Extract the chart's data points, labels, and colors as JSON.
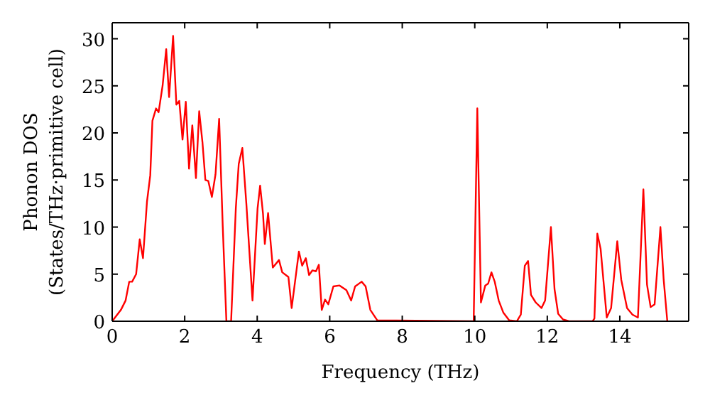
{
  "chart_data": {
    "type": "line",
    "xlabel": "Frequency (THz)",
    "ylabel": "Phonon DOS\n(States/THz·primitive cell)",
    "xlim": [
      0,
      15.9
    ],
    "ylim": [
      0,
      31.7
    ],
    "xticks": [
      0,
      2,
      4,
      6,
      8,
      10,
      12,
      14
    ],
    "yticks": [
      0,
      5,
      10,
      15,
      20,
      25,
      30
    ],
    "grid": false,
    "legend": false,
    "marker": "none",
    "line_style": "solid",
    "series": [
      {
        "color": "#ff0000",
        "x": [
          0,
          0.24,
          0.37,
          0.47,
          0.55,
          0.66,
          0.76,
          0.85,
          0.96,
          1.05,
          1.11,
          1.21,
          1.28,
          1.39,
          1.49,
          1.57,
          1.68,
          1.77,
          1.85,
          1.94,
          2.03,
          2.12,
          2.21,
          2.31,
          2.4,
          2.49,
          2.57,
          2.65,
          2.75,
          2.85,
          2.95,
          3.05,
          3.15,
          3.28,
          3.41,
          3.49,
          3.59,
          3.7,
          3.87,
          4.01,
          4.08,
          4.16,
          4.21,
          4.3,
          4.43,
          4.6,
          4.69,
          4.86,
          4.95,
          5.15,
          5.24,
          5.34,
          5.43,
          5.52,
          5.62,
          5.7,
          5.78,
          5.87,
          5.96,
          6.1,
          6.27,
          6.46,
          6.59,
          6.7,
          6.88,
          6.99,
          7.12,
          7.31,
          9.97,
          10.07,
          10.17,
          10.29,
          10.37,
          10.46,
          10.55,
          10.66,
          10.79,
          10.95,
          11.16,
          11.27,
          11.38,
          11.47,
          11.55,
          11.68,
          11.84,
          11.94,
          12.1,
          12.2,
          12.3,
          12.43,
          12.6,
          13.25,
          13.3,
          13.38,
          13.47,
          13.64,
          13.76,
          13.93,
          14.04,
          14.2,
          14.35,
          14.5,
          14.65,
          14.75,
          14.85,
          14.96,
          15.12,
          15.21,
          15.31
        ],
        "values": [
          0,
          1.2,
          2.2,
          4.2,
          4.2,
          5.0,
          8.7,
          6.7,
          12.7,
          15.5,
          21.3,
          22.6,
          22.2,
          25.0,
          28.9,
          23.8,
          30.3,
          23.0,
          23.4,
          19.3,
          23.3,
          16.2,
          20.8,
          15.2,
          22.3,
          19.0,
          15.0,
          14.9,
          13.2,
          15.6,
          21.5,
          10,
          0,
          0,
          12,
          16.7,
          18.4,
          12.5,
          2.2,
          12,
          14.4,
          11.4,
          8.2,
          11.5,
          5.7,
          6.5,
          5.2,
          4.7,
          1.4,
          7.4,
          5.9,
          6.7,
          4.9,
          5.4,
          5.3,
          6.0,
          1.2,
          2.3,
          1.8,
          3.7,
          3.8,
          3.3,
          2.2,
          3.7,
          4.2,
          3.7,
          1.2,
          0.1,
          0,
          22.6,
          2.0,
          3.8,
          4.0,
          5.2,
          4.2,
          2.2,
          0.9,
          0.1,
          0,
          0.7,
          5.9,
          6.4,
          2.8,
          2.0,
          1.4,
          2.2,
          10.0,
          3.4,
          0.8,
          0.2,
          0,
          0,
          0.3,
          9.3,
          7.7,
          0.4,
          1.4,
          8.5,
          4.4,
          1.4,
          0.7,
          0.4,
          14.0,
          3.9,
          1.5,
          1.8,
          10.0,
          4.4,
          0
        ]
      }
    ]
  }
}
